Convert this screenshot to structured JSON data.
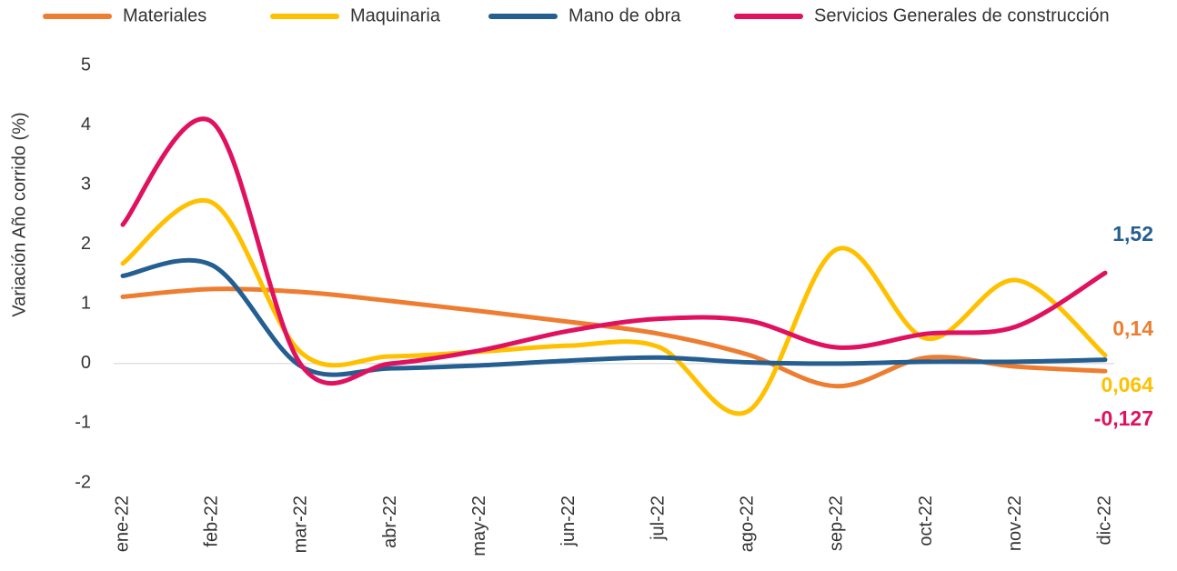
{
  "chart_data": {
    "type": "line",
    "y_label": "Variación Año corrido (%)",
    "categories": [
      "ene-22",
      "feb-22",
      "mar-22",
      "abr-22",
      "may-22",
      "jun-22",
      "jul-22",
      "ago-22",
      "sep-22",
      "oct-22",
      "nov-22",
      "dic-22"
    ],
    "series": [
      {
        "name": "Materiales",
        "color": "#ed7d31",
        "values": [
          1.12,
          1.25,
          1.2,
          1.05,
          0.88,
          0.7,
          0.5,
          0.15,
          -0.38,
          0.1,
          -0.05,
          -0.127
        ]
      },
      {
        "name": "Maquinaria",
        "color": "#ffc000",
        "values": [
          1.68,
          2.7,
          0.18,
          0.12,
          0.2,
          0.3,
          0.28,
          -0.8,
          1.92,
          0.42,
          1.4,
          0.14
        ]
      },
      {
        "name": "Mano de obra",
        "color": "#255e91",
        "values": [
          1.47,
          1.65,
          -0.05,
          -0.08,
          -0.03,
          0.05,
          0.1,
          0.02,
          0.0,
          0.03,
          0.03,
          0.064
        ]
      },
      {
        "name": "Servicios Generales de construcción",
        "color": "#e0115f",
        "values": [
          2.33,
          4.05,
          -0.03,
          0.0,
          0.22,
          0.55,
          0.75,
          0.72,
          0.27,
          0.5,
          0.62,
          1.52
        ]
      }
    ],
    "annotations": [
      {
        "text": "1,52",
        "color": "#255e91"
      },
      {
        "text": "0,14",
        "color": "#ed7d31"
      },
      {
        "text": "0,064",
        "color": "#ffc000"
      },
      {
        "text": "-0,127",
        "color": "#e0115f"
      }
    ],
    "ylim": [
      -2,
      5
    ],
    "yticks": [
      -2,
      -1,
      0,
      1,
      2,
      3,
      4,
      5
    ],
    "zero_line": true,
    "legend": "top"
  }
}
